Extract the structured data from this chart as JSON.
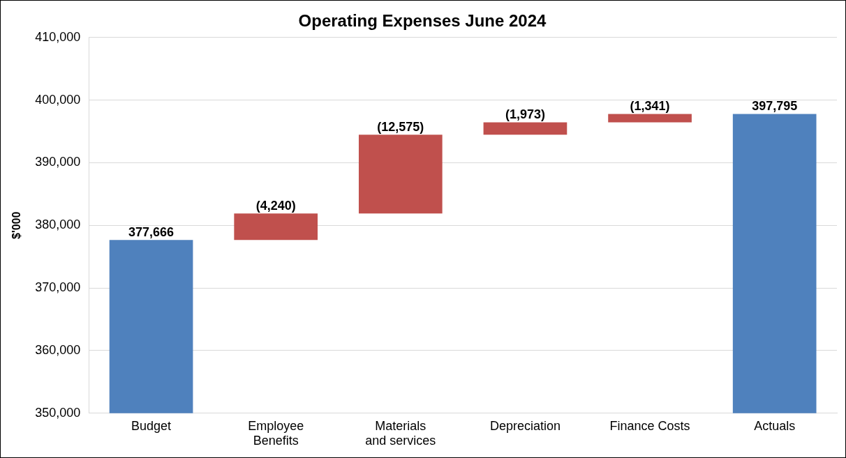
{
  "chart_data": {
    "type": "bar",
    "title": "Operating Expenses June 2024",
    "ylabel": "$'000",
    "categories": [
      "Budget",
      "Employee Benefits",
      "Materials and services",
      "Depreciation",
      "Finance Costs",
      "Actuals"
    ],
    "values": [
      377666,
      4240,
      12575,
      1973,
      1341,
      397795
    ],
    "base": [
      null,
      377666,
      381906,
      394481,
      396454,
      null
    ],
    "colors": [
      "#4f81bd",
      "#c0504d",
      "#c0504d",
      "#c0504d",
      "#c0504d",
      "#4f81bd"
    ],
    "value_labels": [
      "377,666",
      "(4,240)",
      "(12,575)",
      "(1,973)",
      "(1,341)",
      "397,795"
    ],
    "ylim": [
      350000,
      410000
    ],
    "yticks": [
      {
        "value": 350000,
        "label": "350,000"
      },
      {
        "value": 360000,
        "label": "360,000"
      },
      {
        "value": 370000,
        "label": "370,000"
      },
      {
        "value": 380000,
        "label": "380,000"
      },
      {
        "value": 390000,
        "label": "390,000"
      },
      {
        "value": 400000,
        "label": "400,000"
      },
      {
        "value": 410000,
        "label": "410,000"
      }
    ],
    "grid": "y",
    "legend": false
  }
}
